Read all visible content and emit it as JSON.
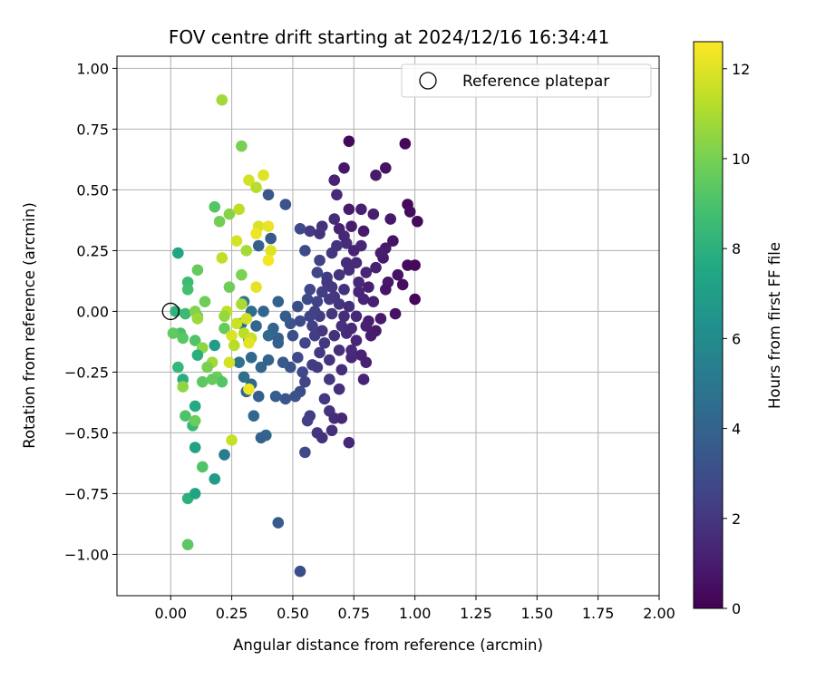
{
  "chart_data": {
    "type": "scatter",
    "title": "FOV centre drift starting at 2024/12/16 16:34:41",
    "xlabel": "Angular distance from reference (arcmin)",
    "ylabel": "Rotation from reference (arcmin)",
    "xlim": [
      -0.22,
      2.0
    ],
    "ylim": [
      -1.17,
      1.05
    ],
    "xticks": [
      0.0,
      0.25,
      0.5,
      0.75,
      1.0,
      1.25,
      1.5,
      1.75,
      2.0
    ],
    "xtick_labels": [
      "0.00",
      "0.25",
      "0.50",
      "0.75",
      "1.00",
      "1.25",
      "1.50",
      "1.75",
      "2.00"
    ],
    "yticks": [
      1.0,
      0.75,
      0.5,
      0.25,
      0.0,
      -0.25,
      -0.5,
      -0.75,
      -1.0
    ],
    "ytick_labels": [
      "1.00",
      "0.75",
      "0.50",
      "0.25",
      "0.00",
      "−0.25",
      "−0.50",
      "−0.75",
      "−1.00"
    ],
    "grid": true,
    "legend": {
      "placement": "upper-right",
      "entries": [
        {
          "label": "Reference platepar",
          "marker": "open-circle",
          "color": "#000000"
        }
      ]
    },
    "reference_point": {
      "x": 0.0,
      "y": 0.0
    },
    "colorbar": {
      "label": "Hours from first FF file",
      "colormap": "viridis",
      "range": [
        0,
        12.6
      ],
      "ticks": [
        0,
        2,
        4,
        6,
        8,
        10,
        12
      ],
      "tick_labels": [
        "0",
        "2",
        "4",
        "6",
        "8",
        "10",
        "12"
      ]
    },
    "points": [
      {
        "x": 0.73,
        "y": 0.7,
        "c": 0.3
      },
      {
        "x": 0.96,
        "y": 0.69,
        "c": 0.2
      },
      {
        "x": 0.71,
        "y": 0.59,
        "c": 0.8
      },
      {
        "x": 0.84,
        "y": 0.56,
        "c": 0.9
      },
      {
        "x": 0.88,
        "y": 0.59,
        "c": 0.6
      },
      {
        "x": 0.67,
        "y": 0.54,
        "c": 1.2
      },
      {
        "x": 0.68,
        "y": 0.48,
        "c": 1.5
      },
      {
        "x": 0.97,
        "y": 0.44,
        "c": 0.2
      },
      {
        "x": 0.98,
        "y": 0.41,
        "c": 0.4
      },
      {
        "x": 1.01,
        "y": 0.37,
        "c": 0.3
      },
      {
        "x": 0.9,
        "y": 0.38,
        "c": 0.8
      },
      {
        "x": 0.83,
        "y": 0.4,
        "c": 1.0
      },
      {
        "x": 0.78,
        "y": 0.42,
        "c": 1.1
      },
      {
        "x": 0.73,
        "y": 0.42,
        "c": 0.9
      },
      {
        "x": 0.67,
        "y": 0.38,
        "c": 1.6
      },
      {
        "x": 0.62,
        "y": 0.35,
        "c": 1.8
      },
      {
        "x": 0.57,
        "y": 0.33,
        "c": 2.2
      },
      {
        "x": 0.53,
        "y": 0.34,
        "c": 2.8
      },
      {
        "x": 0.61,
        "y": 0.32,
        "c": 1.9
      },
      {
        "x": 0.69,
        "y": 0.34,
        "c": 1.2
      },
      {
        "x": 0.74,
        "y": 0.35,
        "c": 1.0
      },
      {
        "x": 0.79,
        "y": 0.33,
        "c": 0.9
      },
      {
        "x": 0.91,
        "y": 0.29,
        "c": 0.7
      },
      {
        "x": 0.88,
        "y": 0.26,
        "c": 0.9
      },
      {
        "x": 0.78,
        "y": 0.27,
        "c": 1.4
      },
      {
        "x": 0.72,
        "y": 0.28,
        "c": 1.6
      },
      {
        "x": 0.66,
        "y": 0.24,
        "c": 2.0
      },
      {
        "x": 0.61,
        "y": 0.21,
        "c": 2.4
      },
      {
        "x": 0.55,
        "y": 0.25,
        "c": 2.9
      },
      {
        "x": 0.6,
        "y": 0.16,
        "c": 2.6
      },
      {
        "x": 0.64,
        "y": 0.14,
        "c": 2.3
      },
      {
        "x": 0.69,
        "y": 0.15,
        "c": 1.9
      },
      {
        "x": 0.73,
        "y": 0.17,
        "c": 1.7
      },
      {
        "x": 0.76,
        "y": 0.2,
        "c": 1.5
      },
      {
        "x": 0.8,
        "y": 0.16,
        "c": 1.3
      },
      {
        "x": 0.84,
        "y": 0.18,
        "c": 1.1
      },
      {
        "x": 0.87,
        "y": 0.22,
        "c": 0.9
      },
      {
        "x": 0.93,
        "y": 0.15,
        "c": 0.6
      },
      {
        "x": 0.97,
        "y": 0.19,
        "c": 0.4
      },
      {
        "x": 1.0,
        "y": 0.19,
        "c": 0.3
      },
      {
        "x": 0.95,
        "y": 0.11,
        "c": 0.5
      },
      {
        "x": 0.89,
        "y": 0.12,
        "c": 0.8
      },
      {
        "x": 0.81,
        "y": 0.1,
        "c": 1.1
      },
      {
        "x": 0.77,
        "y": 0.12,
        "c": 1.4
      },
      {
        "x": 0.71,
        "y": 0.09,
        "c": 1.8
      },
      {
        "x": 0.66,
        "y": 0.1,
        "c": 2.1
      },
      {
        "x": 0.62,
        "y": 0.08,
        "c": 2.3
      },
      {
        "x": 0.57,
        "y": 0.09,
        "c": 2.7
      },
      {
        "x": 0.56,
        "y": 0.05,
        "c": 2.8
      },
      {
        "x": 0.6,
        "y": 0.04,
        "c": 2.5
      },
      {
        "x": 0.65,
        "y": 0.05,
        "c": 2.2
      },
      {
        "x": 0.69,
        "y": 0.03,
        "c": 1.9
      },
      {
        "x": 0.73,
        "y": 0.02,
        "c": 1.6
      },
      {
        "x": 0.79,
        "y": 0.05,
        "c": 1.3
      },
      {
        "x": 0.83,
        "y": 0.04,
        "c": 1.1
      },
      {
        "x": 1.0,
        "y": 0.05,
        "c": 0.2
      },
      {
        "x": 0.92,
        "y": -0.01,
        "c": 0.6
      },
      {
        "x": 0.86,
        "y": -0.03,
        "c": 0.9
      },
      {
        "x": 0.81,
        "y": -0.04,
        "c": 1.1
      },
      {
        "x": 0.76,
        "y": -0.02,
        "c": 1.4
      },
      {
        "x": 0.71,
        "y": -0.02,
        "c": 1.6
      },
      {
        "x": 0.66,
        "y": -0.01,
        "c": 2.0
      },
      {
        "x": 0.61,
        "y": -0.02,
        "c": 2.2
      },
      {
        "x": 0.57,
        "y": -0.02,
        "c": 2.5
      },
      {
        "x": 0.53,
        "y": -0.04,
        "c": 2.9
      },
      {
        "x": 0.49,
        "y": -0.05,
        "c": 3.3
      },
      {
        "x": 0.47,
        "y": -0.02,
        "c": 3.6
      },
      {
        "x": 0.44,
        "y": 0.04,
        "c": 4.0
      },
      {
        "x": 0.42,
        "y": -0.07,
        "c": 4.1
      },
      {
        "x": 0.4,
        "y": -0.1,
        "c": 4.3
      },
      {
        "x": 0.44,
        "y": -0.11,
        "c": 3.9
      },
      {
        "x": 0.5,
        "y": -0.1,
        "c": 3.1
      },
      {
        "x": 0.55,
        "y": -0.13,
        "c": 2.6
      },
      {
        "x": 0.59,
        "y": -0.1,
        "c": 2.3
      },
      {
        "x": 0.63,
        "y": -0.13,
        "c": 2.1
      },
      {
        "x": 0.67,
        "y": -0.1,
        "c": 1.8
      },
      {
        "x": 0.72,
        "y": -0.09,
        "c": 1.6
      },
      {
        "x": 0.76,
        "y": -0.12,
        "c": 1.3
      },
      {
        "x": 0.8,
        "y": -0.06,
        "c": 1.1
      },
      {
        "x": 0.84,
        "y": -0.08,
        "c": 0.9
      },
      {
        "x": 0.78,
        "y": -0.18,
        "c": 1.2
      },
      {
        "x": 0.74,
        "y": -0.19,
        "c": 1.4
      },
      {
        "x": 0.69,
        "y": -0.16,
        "c": 1.7
      },
      {
        "x": 0.65,
        "y": -0.2,
        "c": 1.9
      },
      {
        "x": 0.61,
        "y": -0.17,
        "c": 2.1
      },
      {
        "x": 0.58,
        "y": -0.22,
        "c": 2.3
      },
      {
        "x": 0.52,
        "y": -0.19,
        "c": 2.8
      },
      {
        "x": 0.49,
        "y": -0.23,
        "c": 3.2
      },
      {
        "x": 0.46,
        "y": -0.21,
        "c": 3.5
      },
      {
        "x": 0.54,
        "y": -0.25,
        "c": 2.7
      },
      {
        "x": 0.6,
        "y": -0.23,
        "c": 2.2
      },
      {
        "x": 0.79,
        "y": -0.28,
        "c": 1.2
      },
      {
        "x": 0.55,
        "y": -0.29,
        "c": 2.6
      },
      {
        "x": 0.53,
        "y": -0.33,
        "c": 3.0
      },
      {
        "x": 0.51,
        "y": -0.35,
        "c": 3.2
      },
      {
        "x": 0.47,
        "y": -0.36,
        "c": 3.4
      },
      {
        "x": 0.63,
        "y": -0.36,
        "c": 2.1
      },
      {
        "x": 0.65,
        "y": -0.41,
        "c": 1.9
      },
      {
        "x": 0.57,
        "y": -0.43,
        "c": 2.3
      },
      {
        "x": 0.56,
        "y": -0.45,
        "c": 2.4
      },
      {
        "x": 0.67,
        "y": -0.44,
        "c": 1.6
      },
      {
        "x": 0.7,
        "y": -0.44,
        "c": 1.4
      },
      {
        "x": 0.66,
        "y": -0.49,
        "c": 1.7
      },
      {
        "x": 0.6,
        "y": -0.5,
        "c": 2.0
      },
      {
        "x": 0.62,
        "y": -0.52,
        "c": 1.8
      },
      {
        "x": 0.73,
        "y": -0.54,
        "c": 1.4
      },
      {
        "x": 0.55,
        "y": -0.58,
        "c": 2.7
      },
      {
        "x": 0.44,
        "y": -0.87,
        "c": 3.6
      },
      {
        "x": 0.53,
        "y": -1.07,
        "c": 3.0
      },
      {
        "x": 0.39,
        "y": -0.51,
        "c": 4.2
      },
      {
        "x": 0.37,
        "y": -0.52,
        "c": 3.9
      },
      {
        "x": 0.34,
        "y": -0.43,
        "c": 4.3
      },
      {
        "x": 0.36,
        "y": -0.35,
        "c": 3.8
      },
      {
        "x": 0.43,
        "y": -0.35,
        "c": 3.7
      },
      {
        "x": 0.31,
        "y": -0.33,
        "c": 4.4
      },
      {
        "x": 0.33,
        "y": -0.3,
        "c": 4.2
      },
      {
        "x": 0.3,
        "y": -0.27,
        "c": 4.6
      },
      {
        "x": 0.37,
        "y": -0.23,
        "c": 4.1
      },
      {
        "x": 0.33,
        "y": -0.19,
        "c": 4.3
      },
      {
        "x": 0.4,
        "y": -0.2,
        "c": 4.0
      },
      {
        "x": 0.28,
        "y": -0.21,
        "c": 4.8
      },
      {
        "x": 0.22,
        "y": -0.59,
        "c": 5.2
      },
      {
        "x": 0.44,
        "y": -0.13,
        "c": 3.8
      },
      {
        "x": 0.32,
        "y": -0.12,
        "c": 4.4
      },
      {
        "x": 0.35,
        "y": -0.06,
        "c": 4.2
      },
      {
        "x": 0.29,
        "y": -0.05,
        "c": 4.7
      },
      {
        "x": 0.33,
        "y": 0.0,
        "c": 4.5
      },
      {
        "x": 0.38,
        "y": 0.0,
        "c": 4.1
      },
      {
        "x": 0.3,
        "y": 0.04,
        "c": 4.9
      },
      {
        "x": 0.52,
        "y": 0.02,
        "c": 3.0
      },
      {
        "x": 0.36,
        "y": 0.27,
        "c": 3.8
      },
      {
        "x": 0.41,
        "y": 0.3,
        "c": 3.5
      },
      {
        "x": 0.47,
        "y": 0.44,
        "c": 3.2
      },
      {
        "x": 0.4,
        "y": 0.48,
        "c": 3.4
      },
      {
        "x": 0.03,
        "y": 0.24,
        "c": 7.4
      },
      {
        "x": 0.07,
        "y": 0.12,
        "c": 8.6
      },
      {
        "x": 0.07,
        "y": 0.09,
        "c": 8.8
      },
      {
        "x": 0.11,
        "y": 0.17,
        "c": 9.6
      },
      {
        "x": 0.14,
        "y": 0.04,
        "c": 9.8
      },
      {
        "x": 0.18,
        "y": 0.43,
        "c": 9.2
      },
      {
        "x": 0.2,
        "y": 0.37,
        "c": 9.9
      },
      {
        "x": 0.24,
        "y": 0.4,
        "c": 10.3
      },
      {
        "x": 0.29,
        "y": 0.68,
        "c": 10.0
      },
      {
        "x": 0.21,
        "y": 0.87,
        "c": 10.8
      },
      {
        "x": 0.28,
        "y": 0.42,
        "c": 11.3
      },
      {
        "x": 0.32,
        "y": 0.54,
        "c": 11.8
      },
      {
        "x": 0.35,
        "y": 0.51,
        "c": 11.2
      },
      {
        "x": 0.38,
        "y": 0.56,
        "c": 12.0
      },
      {
        "x": 0.36,
        "y": 0.35,
        "c": 11.9
      },
      {
        "x": 0.4,
        "y": 0.35,
        "c": 12.2
      },
      {
        "x": 0.35,
        "y": 0.32,
        "c": 12.3
      },
      {
        "x": 0.41,
        "y": 0.25,
        "c": 12.0
      },
      {
        "x": 0.27,
        "y": 0.29,
        "c": 11.8
      },
      {
        "x": 0.31,
        "y": 0.25,
        "c": 10.9
      },
      {
        "x": 0.21,
        "y": 0.22,
        "c": 11.4
      },
      {
        "x": 0.4,
        "y": 0.21,
        "c": 12.4
      },
      {
        "x": 0.29,
        "y": 0.15,
        "c": 10.1
      },
      {
        "x": 0.24,
        "y": 0.1,
        "c": 9.8
      },
      {
        "x": 0.35,
        "y": 0.1,
        "c": 12.1
      },
      {
        "x": 0.29,
        "y": 0.03,
        "c": 11.0
      },
      {
        "x": 0.23,
        "y": 0.0,
        "c": 11.4
      },
      {
        "x": 0.22,
        "y": -0.02,
        "c": 10.6
      },
      {
        "x": 0.27,
        "y": -0.05,
        "c": 11.6
      },
      {
        "x": 0.31,
        "y": -0.03,
        "c": 11.8
      },
      {
        "x": 0.22,
        "y": -0.07,
        "c": 9.6
      },
      {
        "x": 0.25,
        "y": -0.1,
        "c": 11.9
      },
      {
        "x": 0.3,
        "y": -0.09,
        "c": 11.3
      },
      {
        "x": 0.33,
        "y": -0.11,
        "c": 11.6
      },
      {
        "x": 0.26,
        "y": -0.14,
        "c": 11.2
      },
      {
        "x": 0.32,
        "y": -0.13,
        "c": 12.1
      },
      {
        "x": 0.04,
        "y": -0.09,
        "c": 8.9
      },
      {
        "x": 0.05,
        "y": -0.11,
        "c": 9.3
      },
      {
        "x": 0.01,
        "y": -0.09,
        "c": 9.5
      },
      {
        "x": 0.02,
        "y": 0.0,
        "c": 8.1
      },
      {
        "x": 0.06,
        "y": -0.01,
        "c": 8.5
      },
      {
        "x": 0.11,
        "y": -0.02,
        "c": 9.7
      },
      {
        "x": 0.1,
        "y": 0.0,
        "c": 10.2
      },
      {
        "x": 0.11,
        "y": -0.03,
        "c": 10.7
      },
      {
        "x": 0.1,
        "y": -0.12,
        "c": 9.1
      },
      {
        "x": 0.13,
        "y": -0.15,
        "c": 10.4
      },
      {
        "x": 0.11,
        "y": -0.18,
        "c": 7.9
      },
      {
        "x": 0.18,
        "y": -0.14,
        "c": 7.0
      },
      {
        "x": 0.17,
        "y": -0.21,
        "c": 10.8
      },
      {
        "x": 0.15,
        "y": -0.23,
        "c": 10.0
      },
      {
        "x": 0.19,
        "y": -0.27,
        "c": 9.8
      },
      {
        "x": 0.21,
        "y": -0.29,
        "c": 9.2
      },
      {
        "x": 0.13,
        "y": -0.29,
        "c": 9.4
      },
      {
        "x": 0.17,
        "y": -0.28,
        "c": 9.6
      },
      {
        "x": 0.03,
        "y": -0.23,
        "c": 8.3
      },
      {
        "x": 0.05,
        "y": -0.28,
        "c": 7.8
      },
      {
        "x": 0.05,
        "y": -0.31,
        "c": 10.5
      },
      {
        "x": 0.24,
        "y": -0.21,
        "c": 11.8
      },
      {
        "x": 0.32,
        "y": -0.32,
        "c": 12.3
      },
      {
        "x": 0.1,
        "y": -0.39,
        "c": 7.6
      },
      {
        "x": 0.06,
        "y": -0.43,
        "c": 9.0
      },
      {
        "x": 0.09,
        "y": -0.47,
        "c": 8.4
      },
      {
        "x": 0.1,
        "y": -0.45,
        "c": 9.7
      },
      {
        "x": 0.1,
        "y": -0.56,
        "c": 7.2
      },
      {
        "x": 0.18,
        "y": -0.69,
        "c": 6.9
      },
      {
        "x": 0.13,
        "y": -0.64,
        "c": 9.1
      },
      {
        "x": 0.07,
        "y": -0.77,
        "c": 8.0
      },
      {
        "x": 0.1,
        "y": -0.75,
        "c": 7.3
      },
      {
        "x": 0.07,
        "y": -0.96,
        "c": 9.4
      },
      {
        "x": 0.25,
        "y": -0.53,
        "c": 11.5
      },
      {
        "x": 0.86,
        "y": 0.24,
        "c": 1.0
      },
      {
        "x": 0.69,
        "y": -0.32,
        "c": 1.7
      },
      {
        "x": 0.58,
        "y": -0.06,
        "c": 2.4
      },
      {
        "x": 0.62,
        "y": -0.08,
        "c": 2.0
      },
      {
        "x": 0.7,
        "y": -0.24,
        "c": 1.6
      },
      {
        "x": 0.68,
        "y": 0.27,
        "c": 1.9
      },
      {
        "x": 0.74,
        "y": -0.07,
        "c": 1.5
      },
      {
        "x": 0.64,
        "y": 0.12,
        "c": 2.1
      },
      {
        "x": 0.8,
        "y": -0.21,
        "c": 1.1
      },
      {
        "x": 0.88,
        "y": 0.09,
        "c": 0.7
      },
      {
        "x": 0.77,
        "y": 0.08,
        "c": 1.3
      },
      {
        "x": 0.71,
        "y": 0.31,
        "c": 1.4
      },
      {
        "x": 0.75,
        "y": 0.25,
        "c": 1.2
      },
      {
        "x": 0.65,
        "y": -0.28,
        "c": 2.0
      },
      {
        "x": 0.59,
        "y": 0.0,
        "c": 2.4
      },
      {
        "x": 0.7,
        "y": -0.06,
        "c": 1.7
      },
      {
        "x": 0.67,
        "y": 0.06,
        "c": 2.0
      },
      {
        "x": 0.74,
        "y": -0.16,
        "c": 1.5
      },
      {
        "x": 0.72,
        "y": 0.2,
        "c": 1.6
      },
      {
        "x": 0.82,
        "y": -0.1,
        "c": 1.0
      }
    ]
  }
}
